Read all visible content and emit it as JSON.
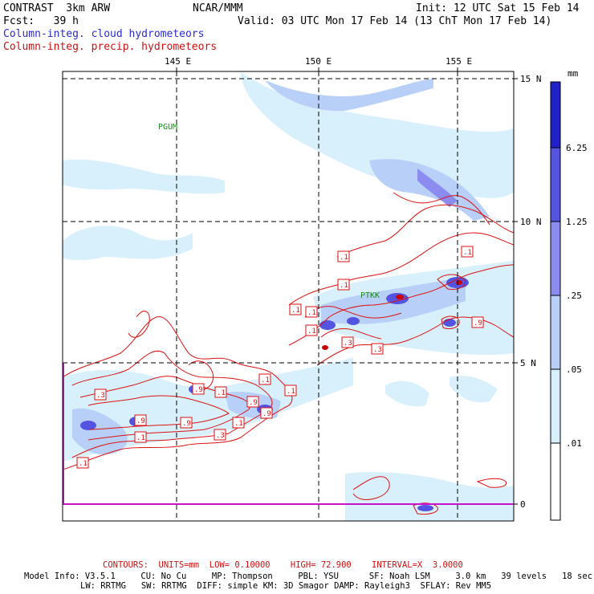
{
  "header": {
    "model": "CONTRAST  3km ARW",
    "org": "NCAR/MMM",
    "init": "Init: 12 UTC Sat 15 Feb 14",
    "fcst": "Fcst:   39 h",
    "valid": "Valid: 03 UTC Mon 17 Feb 14 (13 ChT Mon 17 Feb 14)",
    "field1": "Column-integ. cloud hydrometeors",
    "field2": "Column-integ. precip. hydrometeors"
  },
  "colors": {
    "field1": "#2a2acc",
    "field2": "#cc1111",
    "contour": "#dd1111",
    "station": "#1a8a1a",
    "grid": "#000000"
  },
  "axes": {
    "lon_labels": [
      "145 E",
      "150 E",
      "155 E"
    ],
    "lat_labels": [
      "15 N",
      "10 N",
      "5 N",
      "0"
    ]
  },
  "stations": [
    "PGUM",
    "PTKK"
  ],
  "contour_labels": [
    ".1",
    ".1",
    ".1",
    ".1",
    ".1",
    ".3",
    ".3",
    ".1",
    ".9",
    ".9",
    ".1",
    ".3",
    ".9",
    ".1",
    ".9",
    ".1",
    ".9",
    ".1",
    ".9",
    ".1",
    ".3",
    ".1"
  ],
  "colorbar": {
    "units": "mm",
    "labels": [
      "6.25",
      "1.25",
      ".25",
      ".05",
      ".01"
    ],
    "colors": [
      "#2020c8",
      "#5454e0",
      "#8c8cf0",
      "#b8d0f8",
      "#d8f0fc",
      "#ffffff"
    ]
  },
  "footer": {
    "contours": "CONTOURS:  UNITS=mm  LOW= 0.10000    HIGH= 72.900    INTERVAL=X  3.0000",
    "info1": "Model Info: V3.5.1     CU: No Cu     MP: Thompson     PBL: YSU      SF: Noah LSM     3.0 km   39 levels   18 sec",
    "info2": "LW: RRTMG   SW: RRTMG  DIFF: simple KM: 3D Smagor DAMP: Rayleigh3  SFLAY: Rev MM5"
  }
}
